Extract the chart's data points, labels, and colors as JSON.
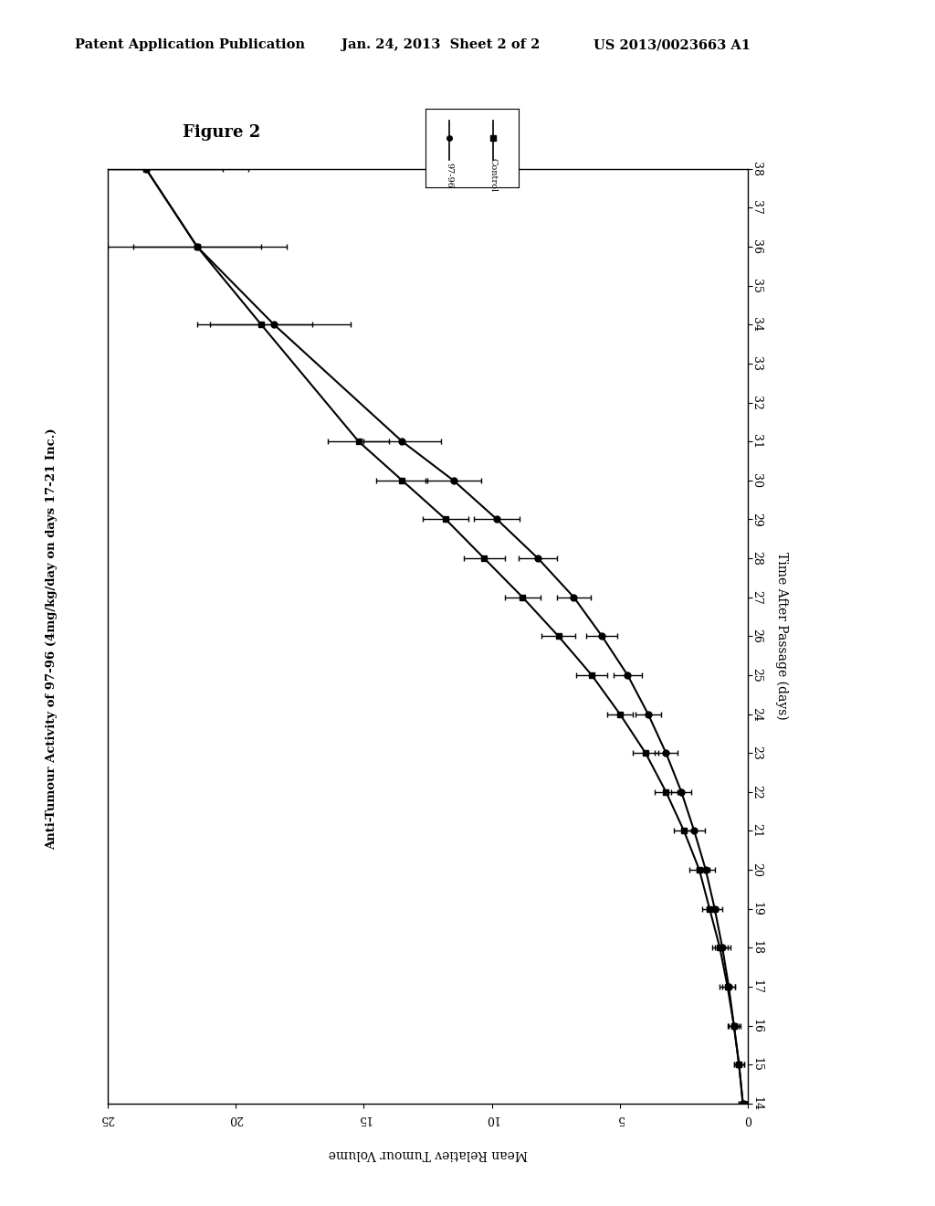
{
  "header_left": "Patent Application Publication",
  "header_mid": "Jan. 24, 2013  Sheet 2 of 2",
  "header_right": "US 2013/0023663 A1",
  "figure_label": "Figure 2",
  "title": "Anti-Tumour Activity of 97-96 (4mg/kg/day on days 17-21 Inc.)",
  "xlabel_days": "Time After Passage (days)",
  "ylabel_vol": "Mean Relatiev Tumour Volume",
  "days_ticks": [
    14,
    15,
    16,
    17,
    18,
    19,
    20,
    21,
    22,
    23,
    24,
    25,
    26,
    27,
    28,
    29,
    30,
    31,
    32,
    33,
    34,
    35,
    36,
    37,
    38
  ],
  "vol_ticks": [
    0,
    5,
    10,
    15,
    20,
    25
  ],
  "control_days": [
    14,
    15,
    16,
    17,
    18,
    19,
    20,
    21,
    22,
    23,
    24,
    25,
    26,
    27,
    28,
    29,
    30,
    31,
    34,
    36,
    38
  ],
  "control_vol": [
    0.2,
    0.35,
    0.55,
    0.8,
    1.1,
    1.5,
    1.9,
    2.5,
    3.2,
    4.0,
    5.0,
    6.1,
    7.4,
    8.8,
    10.3,
    11.8,
    13.5,
    15.2,
    19.0,
    21.5,
    23.5
  ],
  "control_err": [
    0.15,
    0.2,
    0.25,
    0.3,
    0.3,
    0.3,
    0.4,
    0.4,
    0.45,
    0.5,
    0.5,
    0.6,
    0.65,
    0.7,
    0.8,
    0.9,
    1.0,
    1.2,
    2.0,
    2.5,
    3.0
  ],
  "treated_days": [
    14,
    15,
    16,
    17,
    18,
    19,
    20,
    21,
    22,
    23,
    24,
    25,
    26,
    27,
    28,
    29,
    30,
    31,
    34,
    36,
    38
  ],
  "treated_vol": [
    0.2,
    0.35,
    0.55,
    0.75,
    1.0,
    1.3,
    1.65,
    2.1,
    2.6,
    3.2,
    3.9,
    4.7,
    5.7,
    6.8,
    8.2,
    9.8,
    11.5,
    13.5,
    18.5,
    21.5,
    23.5
  ],
  "treated_err": [
    0.15,
    0.2,
    0.2,
    0.25,
    0.3,
    0.3,
    0.35,
    0.4,
    0.4,
    0.45,
    0.5,
    0.55,
    0.6,
    0.65,
    0.75,
    0.9,
    1.1,
    1.5,
    3.0,
    3.5,
    4.0
  ],
  "legend_97_label": "97-96",
  "legend_ctrl_label": "Control"
}
